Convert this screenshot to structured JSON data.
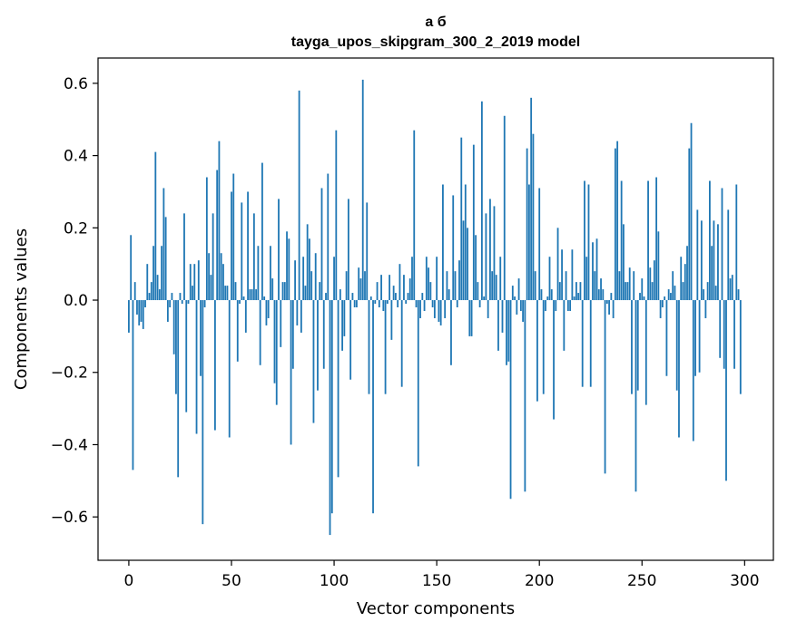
{
  "chart_data": {
    "type": "bar",
    "title_line1": "а б",
    "title_line2": "tayga_upos_skipgram_300_2_2019 model",
    "xlabel": "Vector components",
    "ylabel": "Components values",
    "xlim": [
      -15,
      314
    ],
    "ylim": [
      -0.72,
      0.67
    ],
    "xticks": [
      0,
      50,
      100,
      150,
      200,
      250,
      300
    ],
    "xtick_labels": [
      "0",
      "50",
      "100",
      "150",
      "200",
      "250",
      "300"
    ],
    "yticks": [
      -0.6,
      -0.4,
      -0.2,
      0.0,
      0.2,
      0.4,
      0.6
    ],
    "ytick_labels": [
      "−0.6",
      "−0.4",
      "−0.2",
      "0.0",
      "0.2",
      "0.4",
      "0.6"
    ],
    "bar_color": "#1f77b4",
    "values": [
      -0.09,
      0.18,
      -0.47,
      0.05,
      -0.04,
      -0.07,
      -0.06,
      -0.08,
      -0.02,
      0.1,
      0.02,
      0.05,
      0.15,
      0.41,
      0.07,
      0.03,
      0.15,
      0.31,
      0.23,
      -0.06,
      -0.02,
      0.02,
      -0.15,
      -0.26,
      -0.49,
      0.02,
      -0.01,
      0.24,
      -0.31,
      -0.01,
      0.1,
      0.04,
      0.1,
      -0.37,
      0.11,
      -0.21,
      -0.62,
      -0.02,
      0.34,
      0.13,
      0.07,
      0.24,
      -0.36,
      0.36,
      0.44,
      0.13,
      0.1,
      0.04,
      0.04,
      -0.38,
      0.3,
      0.35,
      0.05,
      -0.17,
      -0.01,
      0.27,
      0.01,
      -0.09,
      0.3,
      0.03,
      0.03,
      0.24,
      0.03,
      0.15,
      -0.18,
      0.38,
      0.01,
      -0.07,
      -0.05,
      0.15,
      0.06,
      -0.23,
      -0.29,
      0.28,
      -0.13,
      0.05,
      0.05,
      0.19,
      0.17,
      -0.4,
      -0.19,
      0.11,
      -0.07,
      0.58,
      -0.09,
      0.12,
      0.04,
      0.21,
      0.17,
      0.08,
      -0.34,
      0.13,
      -0.25,
      0.05,
      0.31,
      -0.19,
      0.02,
      0.35,
      -0.65,
      -0.59,
      0.12,
      0.47,
      -0.49,
      0.03,
      -0.14,
      -0.1,
      0.08,
      0.28,
      -0.22,
      0.02,
      -0.02,
      -0.02,
      0.09,
      0.06,
      0.61,
      0.08,
      0.27,
      -0.26,
      0.01,
      -0.59,
      -0.01,
      0.05,
      -0.02,
      0.07,
      -0.03,
      -0.26,
      -0.01,
      0.07,
      -0.11,
      0.04,
      0.02,
      -0.02,
      0.1,
      -0.24,
      0.07,
      -0.01,
      0.02,
      0.06,
      0.12,
      0.47,
      -0.02,
      -0.46,
      -0.05,
      0.02,
      -0.03,
      0.12,
      0.09,
      0.05,
      -0.02,
      -0.05,
      0.12,
      -0.06,
      -0.07,
      0.32,
      -0.05,
      0.08,
      0.03,
      -0.18,
      0.29,
      0.08,
      -0.02,
      0.11,
      0.45,
      0.22,
      0.32,
      0.2,
      -0.1,
      -0.1,
      0.43,
      0.18,
      0.05,
      -0.02,
      0.55,
      0.01,
      0.24,
      -0.05,
      0.28,
      0.08,
      0.26,
      0.07,
      -0.14,
      0.12,
      -0.09,
      0.51,
      -0.18,
      -0.17,
      -0.55,
      0.04,
      0.01,
      -0.04,
      0.06,
      -0.03,
      -0.06,
      -0.53,
      0.42,
      0.32,
      0.56,
      0.46,
      0.08,
      -0.28,
      0.31,
      0.03,
      -0.26,
      -0.03,
      0.01,
      0.12,
      0.03,
      -0.33,
      -0.03,
      0.2,
      0.05,
      0.14,
      -0.14,
      0.08,
      -0.03,
      -0.03,
      0.14,
      0.01,
      0.05,
      0.02,
      0.05,
      -0.24,
      0.33,
      0.12,
      0.32,
      -0.24,
      0.16,
      0.08,
      0.17,
      0.03,
      0.06,
      0.03,
      -0.48,
      -0.01,
      -0.04,
      0.02,
      -0.05,
      0.42,
      0.44,
      0.08,
      0.33,
      0.21,
      0.05,
      0.05,
      0.09,
      -0.26,
      0.08,
      -0.53,
      -0.25,
      0.02,
      0.06,
      0.01,
      -0.29,
      0.33,
      0.09,
      0.05,
      0.11,
      0.34,
      0.19,
      -0.05,
      -0.02,
      0.01,
      -0.21,
      0.03,
      0.02,
      0.08,
      0.04,
      -0.25,
      -0.38,
      0.12,
      0.05,
      0.1,
      0.15,
      0.42,
      0.49,
      -0.39,
      -0.21,
      0.25,
      -0.2,
      0.22,
      0.03,
      -0.05,
      0.05,
      0.33,
      0.15,
      0.22,
      0.04,
      0.21,
      -0.16,
      0.31,
      -0.19,
      -0.5,
      0.25,
      0.06,
      0.07,
      -0.19,
      0.32,
      0.03,
      -0.26
    ]
  }
}
